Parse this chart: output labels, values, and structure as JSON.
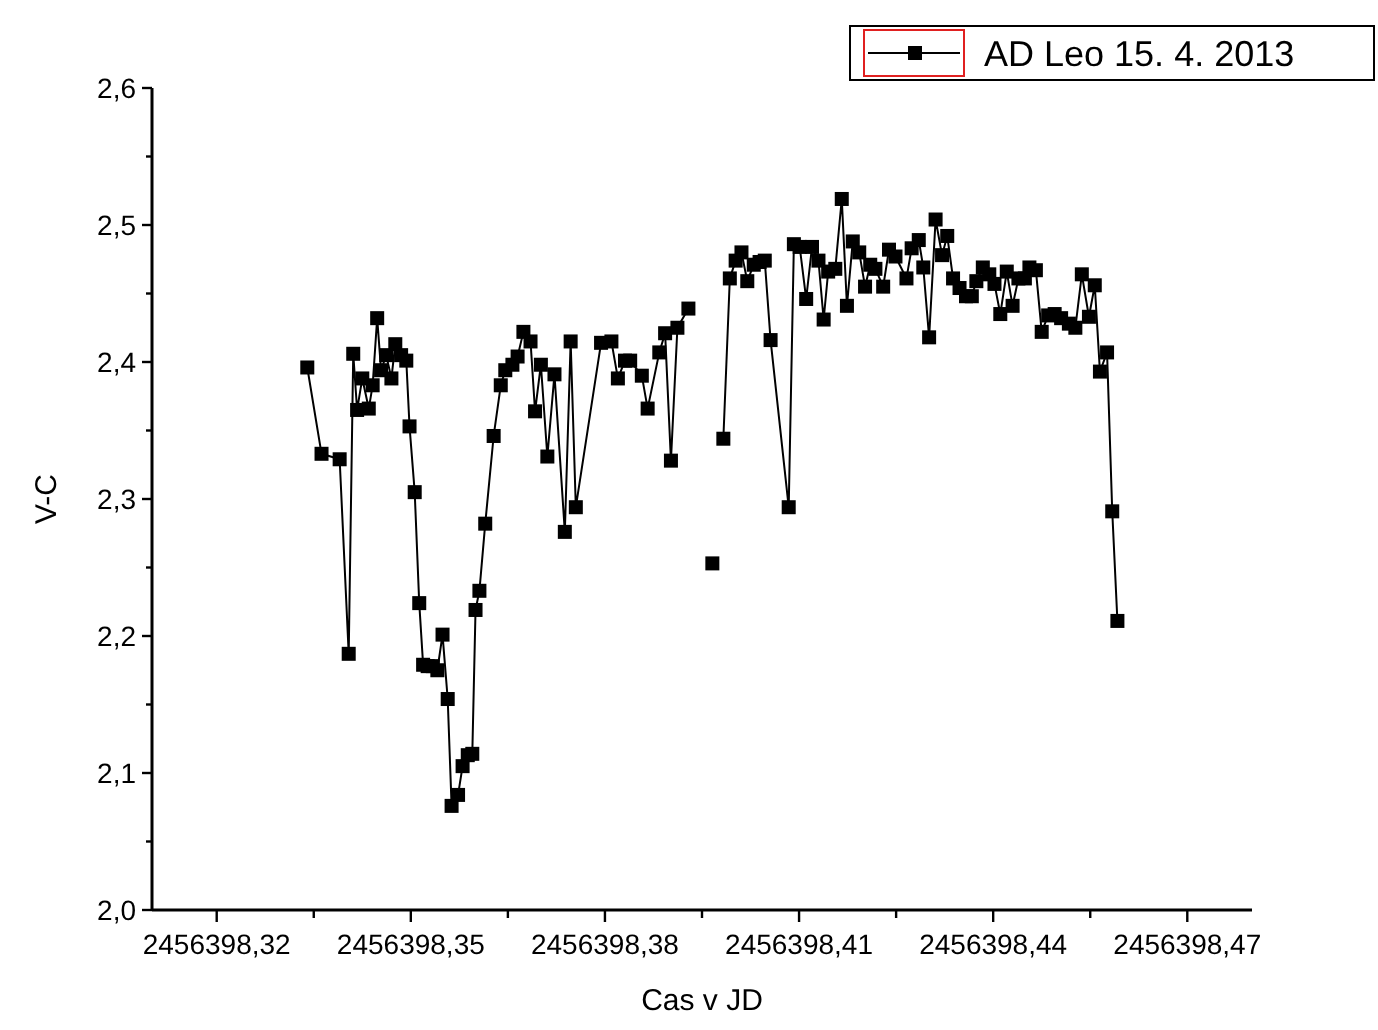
{
  "chart_data": {
    "type": "line",
    "xlabel": "Cas v JD",
    "ylabel": "V-C",
    "legend": "top right",
    "marker": "square",
    "line_style": "solid",
    "grid": false,
    "xlim": [
      2456398.31,
      2456398.48
    ],
    "xticks": [
      {
        "value": 2456398.32,
        "label": "2456398,32"
      },
      {
        "value": 2456398.335,
        "label": null
      },
      {
        "value": 2456398.35,
        "label": "2456398,35"
      },
      {
        "value": 2456398.365,
        "label": null
      },
      {
        "value": 2456398.38,
        "label": "2456398,38"
      },
      {
        "value": 2456398.395,
        "label": null
      },
      {
        "value": 2456398.41,
        "label": "2456398,41"
      },
      {
        "value": 2456398.425,
        "label": null
      },
      {
        "value": 2456398.44,
        "label": "2456398,44"
      },
      {
        "value": 2456398.455,
        "label": null
      },
      {
        "value": 2456398.47,
        "label": "2456398,47"
      }
    ],
    "ylim": [
      2.0,
      2.6
    ],
    "yticks": [
      {
        "value": 2.0,
        "label": "2,0"
      },
      {
        "value": 2.05,
        "label": null
      },
      {
        "value": 2.1,
        "label": "2,1"
      },
      {
        "value": 2.15,
        "label": null
      },
      {
        "value": 2.2,
        "label": "2,2"
      },
      {
        "value": 2.25,
        "label": null
      },
      {
        "value": 2.3,
        "label": "2,3"
      },
      {
        "value": 2.35,
        "label": null
      },
      {
        "value": 2.4,
        "label": "2,4"
      },
      {
        "value": 2.45,
        "label": null
      },
      {
        "value": 2.5,
        "label": "2,5"
      },
      {
        "value": 2.55,
        "label": null
      },
      {
        "value": 2.6,
        "label": "2,6"
      }
    ],
    "series": [
      {
        "name": "AD Leo 15. 4. 2013",
        "color": "#000000",
        "x": [
          2456398.334,
          2456398.3362,
          2456398.339,
          2456398.3404,
          2456398.3411,
          2456398.3417,
          2456398.3425,
          2456398.3435,
          2456398.3441,
          2456398.3448,
          2456398.3454,
          2456398.3462,
          2456398.347,
          2456398.3476,
          2456398.3485,
          2456398.3493,
          2456398.3498,
          2456398.3506,
          2456398.3513,
          2456398.3519,
          2456398.3526,
          2456398.3534,
          2456398.3541,
          2456398.3549,
          2456398.3557,
          2456398.3563,
          2456398.3573,
          2456398.358,
          2456398.3588,
          2456398.3595,
          2456398.36,
          2456398.3606,
          2456398.3615,
          2456398.3628,
          2456398.3639,
          2456398.3646,
          2456398.3657,
          2456398.3665,
          2456398.3674,
          2456398.3685,
          2456398.3692,
          2456398.3701,
          2456398.3711,
          2456398.3722,
          2456398.3738,
          2456398.3747,
          2456398.3755,
          2456398.3794,
          2456398.381,
          2456398.382,
          2456398.3831,
          2456398.3839,
          2456398.3857,
          2456398.3866,
          2456398.3884,
          2456398.3893,
          2456398.3902,
          2456398.3912,
          2456398.3929,
          2456398.395,
          2456398.3966,
          2456398.3975,
          2456398.3983,
          2456398.3993,
          2456398.4002,
          2456398.4011,
          2456398.402,
          2456398.403,
          2456398.4039,
          2456398.4047,
          2456398.4056,
          2456398.4084,
          2456398.4092,
          2456398.4101,
          2456398.4111,
          2456398.412,
          2456398.413,
          2456398.4138,
          2456398.4145,
          2456398.4156,
          2456398.4166,
          2456398.4174,
          2456398.4183,
          2456398.4193,
          2456398.4202,
          2456398.421,
          2456398.4218,
          2456398.423,
          2456398.4239,
          2456398.4249,
          2456398.4266,
          2456398.4274,
          2456398.4285,
          2456398.4292,
          2456398.4301,
          2456398.4311,
          2456398.4321,
          2456398.4329,
          2456398.4338,
          2456398.4348,
          2456398.4358,
          2456398.4367,
          2456398.4374,
          2456398.4384,
          2456398.4394,
          2456398.4402,
          2456398.4411,
          2456398.4421,
          2456398.443,
          2456398.4439,
          2456398.4449,
          2456398.4456,
          2456398.4466,
          2456398.4475,
          2456398.4485,
          2456398.4495,
          2456398.4505,
          2456398.4517,
          2456398.4527,
          2456398.4537,
          2456398.4548,
          2456398.4557,
          2456398.4565,
          2456398.4576,
          2456398.4584,
          2456398.4592
        ],
        "values": [
          2.396,
          2.333,
          2.329,
          2.187,
          2.406,
          2.365,
          2.388,
          2.366,
          2.383,
          2.432,
          2.394,
          2.405,
          2.388,
          2.413,
          2.405,
          2.401,
          2.353,
          2.305,
          2.224,
          2.179,
          2.178,
          2.178,
          2.175,
          2.201,
          2.154,
          2.076,
          2.084,
          2.105,
          2.113,
          2.114,
          2.219,
          2.233,
          2.282,
          2.346,
          2.383,
          2.394,
          2.398,
          2.404,
          2.422,
          2.415,
          2.364,
          2.398,
          2.331,
          2.391,
          2.276,
          2.415,
          2.294,
          2.414,
          2.415,
          2.388,
          2.401,
          2.401,
          2.39,
          2.366,
          2.407,
          2.421,
          2.328,
          2.425,
          2.439,
          null,
          2.253,
          null,
          2.344,
          2.461,
          2.474,
          2.48,
          2.459,
          2.471,
          2.473,
          2.474,
          2.416,
          2.294,
          2.486,
          2.484,
          2.446,
          2.484,
          2.474,
          2.431,
          2.466,
          2.468,
          2.519,
          2.441,
          2.488,
          2.48,
          2.455,
          2.471,
          2.468,
          2.455,
          2.482,
          2.477,
          2.461,
          2.483,
          2.489,
          2.469,
          2.418,
          2.504,
          2.478,
          2.492,
          2.461,
          2.454,
          2.448,
          2.448,
          2.459,
          2.469,
          2.464,
          2.457,
          2.435,
          2.466,
          2.441,
          2.461,
          2.461,
          2.469,
          2.467,
          2.422,
          2.434,
          2.435,
          2.432,
          2.428,
          2.425,
          2.464,
          2.433,
          2.456,
          2.393,
          2.407,
          2.291,
          2.211
        ]
      }
    ]
  }
}
